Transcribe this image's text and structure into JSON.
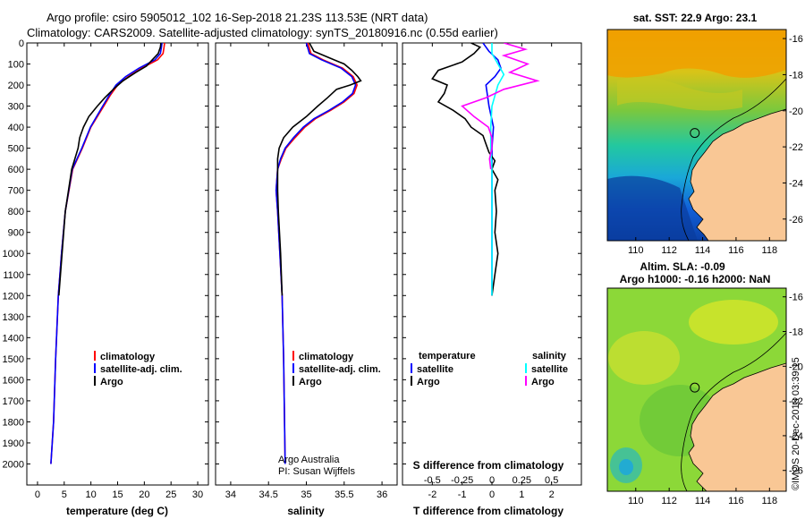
{
  "figure": {
    "title_line1": "Argo profile: csiro 5905012_102 16-Sep-2018 21.23S 113.53E (NRT data)",
    "title_line2": "Climatology: CARS2009. Satellite-adjusted climatology: synTS_20180916.nc (0.55d earlier)",
    "sst_title": "sat. SST: 22.9 Argo: 23.1",
    "sla_title1": "Altim. SLA: -0.09",
    "sla_title2": "Argo h1000: -0.16 h2000: NaN",
    "credit_line1": "Argo Australia",
    "credit_line2": "PI: Susan Wijffels",
    "stamp": "©IMOS 20-Dec-2018 03:39:15"
  },
  "colors": {
    "clim": "#ff0000",
    "sat": "#0000ff",
    "argo": "#000000",
    "sat_s": "#00ffff",
    "argo_s": "#ff00ff",
    "land": "#f9c795"
  },
  "chart_data": [
    {
      "type": "line",
      "name": "temperature",
      "xlabel": "temperature (deg C)",
      "xlim": [
        -2,
        32
      ],
      "ylim": [
        2100,
        0
      ],
      "xticks": [
        0,
        5,
        10,
        15,
        20,
        25,
        30
      ],
      "yticks": [
        0,
        100,
        200,
        300,
        400,
        500,
        600,
        700,
        800,
        900,
        1000,
        1100,
        1200,
        1300,
        1400,
        1500,
        1600,
        1700,
        1800,
        1900,
        2000
      ],
      "legend": [
        "climatology",
        "satellite-adj. clim.",
        "Argo"
      ],
      "series": [
        {
          "name": "climatology",
          "color_key": "clim",
          "depth": [
            0,
            20,
            50,
            80,
            120,
            160,
            200,
            250,
            300,
            400,
            500,
            600,
            800,
            1000,
            1200,
            1500,
            1800,
            2000
          ],
          "values": [
            23.8,
            23.7,
            23.5,
            22.5,
            19.5,
            17.0,
            15.0,
            13.6,
            12.4,
            10.0,
            8.4,
            6.6,
            5.2,
            4.5,
            3.9,
            3.4,
            3.0,
            2.5
          ]
        },
        {
          "name": "satellite-adj. clim.",
          "color_key": "sat",
          "depth": [
            0,
            20,
            50,
            80,
            120,
            160,
            200,
            250,
            300,
            400,
            500,
            600,
            800,
            1000,
            1200,
            1500,
            1800,
            2000
          ],
          "values": [
            23.3,
            23.2,
            23.0,
            22.0,
            19.0,
            16.5,
            14.7,
            13.4,
            12.2,
            9.9,
            8.3,
            6.5,
            5.2,
            4.5,
            3.9,
            3.4,
            3.0,
            2.5
          ]
        },
        {
          "name": "Argo",
          "color_key": "argo",
          "depth": [
            0,
            20,
            50,
            80,
            110,
            140,
            180,
            220,
            260,
            300,
            350,
            400,
            450,
            500,
            600,
            800,
            1000,
            1200
          ],
          "values": [
            23.1,
            23.0,
            22.6,
            21.5,
            20.4,
            18.4,
            16.0,
            14.2,
            12.6,
            11.2,
            9.6,
            8.6,
            7.9,
            7.6,
            6.4,
            5.2,
            4.6,
            4.0
          ]
        }
      ]
    },
    {
      "type": "line",
      "name": "salinity",
      "xlabel": "salinity",
      "xlim": [
        33.8,
        36.2
      ],
      "ylim": [
        2100,
        0
      ],
      "xticks": [
        34,
        34.5,
        35,
        35.5,
        36
      ],
      "legend": [
        "climatology",
        "satellite-adj. clim.",
        "Argo"
      ],
      "series": [
        {
          "name": "climatology",
          "color_key": "clim",
          "depth": [
            0,
            50,
            80,
            120,
            160,
            200,
            240,
            280,
            320,
            360,
            400,
            450,
            500,
            550,
            600,
            700,
            800,
            1000,
            1200,
            1500,
            2000
          ],
          "values": [
            35.02,
            35.06,
            35.22,
            35.48,
            35.62,
            35.67,
            35.63,
            35.5,
            35.32,
            35.12,
            34.98,
            34.85,
            34.73,
            34.67,
            34.62,
            34.6,
            34.62,
            34.65,
            34.68,
            34.7,
            34.72
          ]
        },
        {
          "name": "satellite-adj. clim.",
          "color_key": "sat",
          "depth": [
            0,
            50,
            80,
            120,
            160,
            200,
            240,
            280,
            320,
            360,
            400,
            450,
            500,
            550,
            600,
            700,
            800,
            1000,
            1200,
            1500,
            2000
          ],
          "values": [
            35.0,
            35.04,
            35.2,
            35.46,
            35.6,
            35.65,
            35.61,
            35.48,
            35.3,
            35.1,
            34.96,
            34.83,
            34.72,
            34.66,
            34.62,
            34.6,
            34.62,
            34.65,
            34.68,
            34.7,
            34.72
          ]
        },
        {
          "name": "Argo",
          "color_key": "argo",
          "depth": [
            0,
            40,
            70,
            100,
            130,
            160,
            180,
            200,
            220,
            260,
            300,
            350,
            400,
            450,
            500,
            550,
            600,
            700,
            800,
            1000,
            1200
          ],
          "values": [
            35.04,
            35.1,
            35.3,
            35.5,
            35.6,
            35.68,
            35.72,
            35.58,
            35.4,
            35.28,
            35.15,
            35.0,
            34.82,
            34.7,
            34.64,
            34.62,
            34.62,
            34.62,
            34.63,
            34.66,
            34.68
          ]
        }
      ]
    },
    {
      "type": "line",
      "name": "differences",
      "xlabel": "T difference from climatology",
      "x2label": "S difference from climatology",
      "xlim": [
        -3,
        3
      ],
      "ylim": [
        2100,
        0
      ],
      "xticks": [
        "-2",
        "-1",
        "0",
        "1",
        "2"
      ],
      "xtick_values": [
        -2,
        -1,
        0,
        1,
        2
      ],
      "x2ticks": [
        "-0.5",
        "-0.25",
        "0",
        "0.25",
        "0.5"
      ],
      "x2lim": [
        -0.75,
        0.75
      ],
      "legend_left_title": "temperature",
      "legend_right_title": "salinity",
      "legend_left": [
        "satellite",
        "Argo"
      ],
      "legend_right": [
        "satellite",
        "Argo"
      ],
      "series": [
        {
          "name": "T satellite",
          "color_key": "sat",
          "axis": "T",
          "depth": [
            0,
            40,
            80,
            120,
            160,
            200,
            300,
            400,
            500,
            600,
            700,
            800,
            1000,
            1200
          ],
          "values": [
            -0.3,
            -0.1,
            0.2,
            0.3,
            0.1,
            -0.2,
            -0.1,
            0.05,
            0.0,
            0.0,
            0.0,
            0.0,
            0.0,
            0.0
          ]
        },
        {
          "name": "T Argo",
          "color_key": "argo",
          "axis": "T",
          "depth": [
            0,
            20,
            50,
            90,
            130,
            170,
            200,
            240,
            280,
            320,
            360,
            400,
            440,
            480,
            520,
            560,
            600,
            650,
            700,
            800,
            900,
            1000,
            1100,
            1200
          ],
          "values": [
            -0.7,
            -0.4,
            -0.6,
            -1.0,
            -1.8,
            -2.0,
            -1.5,
            -1.6,
            -1.8,
            -1.3,
            -0.9,
            -0.7,
            -0.3,
            -0.2,
            -0.1,
            0.1,
            0.0,
            0.2,
            0.1,
            0.15,
            0.1,
            0.2,
            0.1,
            0.0
          ]
        },
        {
          "name": "S satellite",
          "color_key": "sat_s",
          "axis": "S",
          "depth": [
            0,
            50,
            100,
            150,
            200,
            300,
            400,
            500,
            600,
            700,
            800,
            1000,
            1200
          ],
          "values": [
            0.0,
            0.0,
            0.05,
            0.1,
            0.05,
            0.0,
            -0.01,
            -0.01,
            0.0,
            0.0,
            0.0,
            0.0,
            0.0
          ]
        },
        {
          "name": "S Argo",
          "color_key": "argo_s",
          "axis": "S",
          "depth": [
            0,
            30,
            60,
            100,
            140,
            180,
            220,
            260,
            300,
            350,
            400,
            450,
            500,
            550,
            600
          ],
          "values": [
            0.1,
            0.28,
            0.1,
            0.3,
            0.15,
            0.38,
            0.1,
            -0.05,
            -0.25,
            -0.15,
            -0.03,
            0.0,
            0.0,
            -0.02,
            -0.01
          ]
        }
      ]
    }
  ],
  "maps": {
    "lon_ticks": [
      "110",
      "112",
      "114",
      "116",
      "118"
    ],
    "lon_values": [
      110,
      112,
      114,
      116,
      118
    ],
    "lat_ticks": [
      "-16",
      "-18",
      "-20",
      "-22",
      "-24",
      "-26"
    ],
    "lat_values": [
      -16,
      -18,
      -20,
      -22,
      -24,
      -26
    ],
    "lon_range": [
      108.3,
      119
    ],
    "lat_range": [
      -15.5,
      -27.2
    ],
    "argo_location": {
      "lon": 113.53,
      "lat": -21.23
    }
  }
}
